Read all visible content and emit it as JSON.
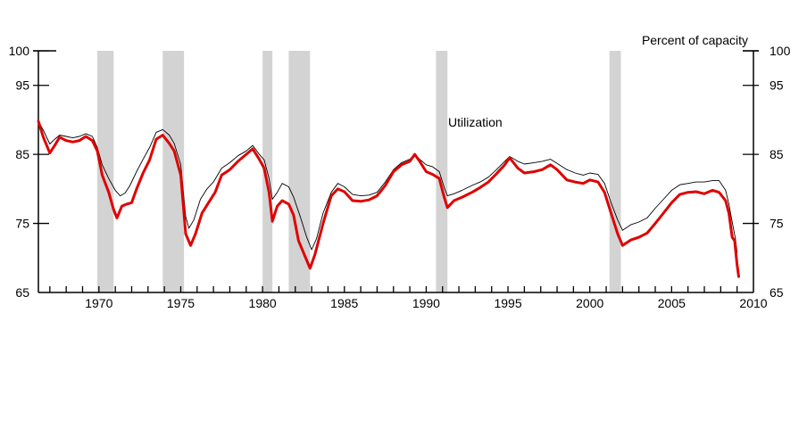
{
  "chart_data": {
    "type": "line",
    "title": "",
    "ylabel": "Percent of capacity",
    "annotation": "Utilization",
    "xlim": [
      1966.3,
      2010.0
    ],
    "ylim": [
      65,
      100
    ],
    "yticks": [
      65,
      75,
      85,
      95,
      100
    ],
    "yticks_right": [
      65,
      75,
      85,
      95,
      100
    ],
    "xticks": [
      1970,
      1975,
      1980,
      1985,
      1990,
      1995,
      2000,
      2005,
      2010
    ],
    "grid": false,
    "recessions": [
      [
        1969.9,
        1970.9
      ],
      [
        1973.9,
        1975.2
      ],
      [
        1980.0,
        1980.6
      ],
      [
        1981.6,
        1982.9
      ],
      [
        1990.6,
        1991.3
      ],
      [
        2001.2,
        2001.9
      ]
    ],
    "colors": {
      "utilization": "#e00000",
      "secondary": "#000000",
      "recession": "#d3d3d3"
    },
    "series": [
      {
        "key": "thin",
        "color": "#000000",
        "points": [
          [
            1966.3,
            89.8
          ],
          [
            1966.6,
            88.5
          ],
          [
            1967.0,
            86.5
          ],
          [
            1967.3,
            87.2
          ],
          [
            1967.6,
            87.8
          ],
          [
            1968.0,
            87.6
          ],
          [
            1968.4,
            87.4
          ],
          [
            1968.8,
            87.6
          ],
          [
            1969.2,
            88.0
          ],
          [
            1969.6,
            87.6
          ],
          [
            1969.9,
            86.0
          ],
          [
            1970.2,
            83.5
          ],
          [
            1970.6,
            81.5
          ],
          [
            1971.0,
            79.8
          ],
          [
            1971.3,
            79.0
          ],
          [
            1971.6,
            79.4
          ],
          [
            1971.9,
            80.5
          ],
          [
            1972.3,
            82.5
          ],
          [
            1972.7,
            84.3
          ],
          [
            1973.1,
            86.0
          ],
          [
            1973.5,
            88.2
          ],
          [
            1973.9,
            88.6
          ],
          [
            1974.3,
            87.8
          ],
          [
            1974.6,
            86.6
          ],
          [
            1975.0,
            83.5
          ],
          [
            1975.3,
            76.0
          ],
          [
            1975.5,
            74.3
          ],
          [
            1975.8,
            75.5
          ],
          [
            1976.2,
            78.5
          ],
          [
            1976.6,
            80.0
          ],
          [
            1977.0,
            81.0
          ],
          [
            1977.5,
            83.0
          ],
          [
            1978.0,
            83.8
          ],
          [
            1978.5,
            84.8
          ],
          [
            1979.0,
            85.5
          ],
          [
            1979.4,
            86.3
          ],
          [
            1979.8,
            85.0
          ],
          [
            1980.1,
            84.2
          ],
          [
            1980.4,
            81.5
          ],
          [
            1980.6,
            78.5
          ],
          [
            1980.9,
            79.5
          ],
          [
            1981.2,
            80.8
          ],
          [
            1981.6,
            80.3
          ],
          [
            1981.9,
            78.8
          ],
          [
            1982.3,
            76.0
          ],
          [
            1982.7,
            73.0
          ],
          [
            1983.0,
            71.2
          ],
          [
            1983.3,
            72.8
          ],
          [
            1983.7,
            76.5
          ],
          [
            1984.2,
            79.5
          ],
          [
            1984.6,
            80.8
          ],
          [
            1985.0,
            80.3
          ],
          [
            1985.5,
            79.2
          ],
          [
            1986.0,
            79.0
          ],
          [
            1986.5,
            79.1
          ],
          [
            1987.0,
            79.5
          ],
          [
            1987.5,
            81.0
          ],
          [
            1988.0,
            82.8
          ],
          [
            1988.5,
            83.8
          ],
          [
            1989.0,
            84.3
          ],
          [
            1989.3,
            85.0
          ],
          [
            1989.6,
            84.3
          ],
          [
            1990.0,
            83.5
          ],
          [
            1990.4,
            83.2
          ],
          [
            1990.8,
            82.5
          ],
          [
            1991.1,
            80.2
          ],
          [
            1991.3,
            79.0
          ],
          [
            1991.7,
            79.3
          ],
          [
            1992.2,
            79.8
          ],
          [
            1992.8,
            80.5
          ],
          [
            1993.3,
            81.0
          ],
          [
            1993.8,
            81.7
          ],
          [
            1994.3,
            82.8
          ],
          [
            1994.8,
            84.0
          ],
          [
            1995.1,
            84.7
          ],
          [
            1995.6,
            84.0
          ],
          [
            1996.0,
            83.6
          ],
          [
            1996.6,
            83.8
          ],
          [
            1997.1,
            84.0
          ],
          [
            1997.6,
            84.3
          ],
          [
            1998.0,
            83.7
          ],
          [
            1998.6,
            82.8
          ],
          [
            1999.1,
            82.3
          ],
          [
            1999.6,
            82.0
          ],
          [
            2000.0,
            82.3
          ],
          [
            2000.5,
            82.1
          ],
          [
            2000.9,
            80.8
          ],
          [
            2001.3,
            78.0
          ],
          [
            2001.7,
            75.5
          ],
          [
            2002.0,
            74.0
          ],
          [
            2002.5,
            74.8
          ],
          [
            2003.0,
            75.2
          ],
          [
            2003.5,
            75.8
          ],
          [
            2004.0,
            77.2
          ],
          [
            2004.5,
            78.5
          ],
          [
            2005.0,
            79.8
          ],
          [
            2005.5,
            80.6
          ],
          [
            2006.0,
            80.8
          ],
          [
            2006.5,
            81.0
          ],
          [
            2007.0,
            81.0
          ],
          [
            2007.5,
            81.2
          ],
          [
            2007.9,
            81.2
          ],
          [
            2008.3,
            79.8
          ],
          [
            2008.5,
            77.8
          ],
          [
            2008.7,
            75.2
          ],
          [
            2008.9,
            72.8
          ],
          [
            2009.0,
            70.8
          ]
        ]
      },
      {
        "key": "utilization",
        "color": "#e00000",
        "points": [
          [
            1966.3,
            89.8
          ],
          [
            1966.6,
            87.5
          ],
          [
            1967.0,
            85.2
          ],
          [
            1967.3,
            86.3
          ],
          [
            1967.6,
            87.5
          ],
          [
            1968.0,
            87.0
          ],
          [
            1968.4,
            86.8
          ],
          [
            1968.8,
            87.0
          ],
          [
            1969.2,
            87.6
          ],
          [
            1969.6,
            87.0
          ],
          [
            1969.9,
            85.5
          ],
          [
            1970.2,
            82.0
          ],
          [
            1970.6,
            79.5
          ],
          [
            1970.9,
            77.0
          ],
          [
            1971.1,
            75.8
          ],
          [
            1971.4,
            77.5
          ],
          [
            1971.7,
            77.8
          ],
          [
            1972.0,
            78.0
          ],
          [
            1972.3,
            80.0
          ],
          [
            1972.7,
            82.3
          ],
          [
            1973.1,
            84.2
          ],
          [
            1973.5,
            87.2
          ],
          [
            1973.9,
            87.8
          ],
          [
            1974.3,
            86.6
          ],
          [
            1974.6,
            85.5
          ],
          [
            1975.0,
            82.0
          ],
          [
            1975.3,
            73.5
          ],
          [
            1975.6,
            71.8
          ],
          [
            1975.9,
            73.5
          ],
          [
            1976.3,
            76.5
          ],
          [
            1976.7,
            78.0
          ],
          [
            1977.1,
            79.5
          ],
          [
            1977.5,
            82.0
          ],
          [
            1978.0,
            82.8
          ],
          [
            1978.5,
            84.0
          ],
          [
            1979.0,
            85.0
          ],
          [
            1979.4,
            85.8
          ],
          [
            1979.8,
            84.3
          ],
          [
            1980.1,
            83.0
          ],
          [
            1980.4,
            79.5
          ],
          [
            1980.6,
            75.3
          ],
          [
            1980.9,
            77.5
          ],
          [
            1981.2,
            78.3
          ],
          [
            1981.6,
            77.8
          ],
          [
            1981.9,
            76.2
          ],
          [
            1982.2,
            72.5
          ],
          [
            1982.6,
            70.2
          ],
          [
            1982.9,
            68.5
          ],
          [
            1983.2,
            70.5
          ],
          [
            1983.7,
            75.0
          ],
          [
            1984.2,
            79.0
          ],
          [
            1984.6,
            80.0
          ],
          [
            1985.0,
            79.6
          ],
          [
            1985.5,
            78.3
          ],
          [
            1986.0,
            78.2
          ],
          [
            1986.5,
            78.4
          ],
          [
            1987.0,
            79.0
          ],
          [
            1987.5,
            80.5
          ],
          [
            1988.0,
            82.5
          ],
          [
            1988.5,
            83.5
          ],
          [
            1989.0,
            84.0
          ],
          [
            1989.3,
            85.0
          ],
          [
            1989.6,
            84.0
          ],
          [
            1990.0,
            82.5
          ],
          [
            1990.4,
            82.1
          ],
          [
            1990.8,
            81.5
          ],
          [
            1991.1,
            78.8
          ],
          [
            1991.3,
            77.3
          ],
          [
            1991.7,
            78.3
          ],
          [
            1992.2,
            78.8
          ],
          [
            1992.8,
            79.5
          ],
          [
            1993.3,
            80.2
          ],
          [
            1993.8,
            81.0
          ],
          [
            1994.3,
            82.2
          ],
          [
            1994.8,
            83.5
          ],
          [
            1995.1,
            84.5
          ],
          [
            1995.6,
            83.0
          ],
          [
            1996.0,
            82.3
          ],
          [
            1996.6,
            82.5
          ],
          [
            1997.1,
            82.8
          ],
          [
            1997.6,
            83.5
          ],
          [
            1998.0,
            82.8
          ],
          [
            1998.6,
            81.3
          ],
          [
            1999.1,
            81.0
          ],
          [
            1999.6,
            80.8
          ],
          [
            2000.0,
            81.3
          ],
          [
            2000.5,
            81.0
          ],
          [
            2000.9,
            79.5
          ],
          [
            2001.3,
            76.5
          ],
          [
            2001.7,
            73.5
          ],
          [
            2002.0,
            71.8
          ],
          [
            2002.5,
            72.6
          ],
          [
            2003.0,
            73.0
          ],
          [
            2003.5,
            73.6
          ],
          [
            2004.0,
            75.0
          ],
          [
            2004.5,
            76.5
          ],
          [
            2005.0,
            78.0
          ],
          [
            2005.5,
            79.2
          ],
          [
            2006.0,
            79.5
          ],
          [
            2006.5,
            79.6
          ],
          [
            2007.0,
            79.3
          ],
          [
            2007.5,
            79.8
          ],
          [
            2007.9,
            79.5
          ],
          [
            2008.3,
            78.3
          ],
          [
            2008.5,
            76.5
          ],
          [
            2008.7,
            73.0
          ],
          [
            2008.85,
            72.5
          ],
          [
            2009.0,
            69.0
          ],
          [
            2009.1,
            67.3
          ]
        ]
      }
    ]
  }
}
